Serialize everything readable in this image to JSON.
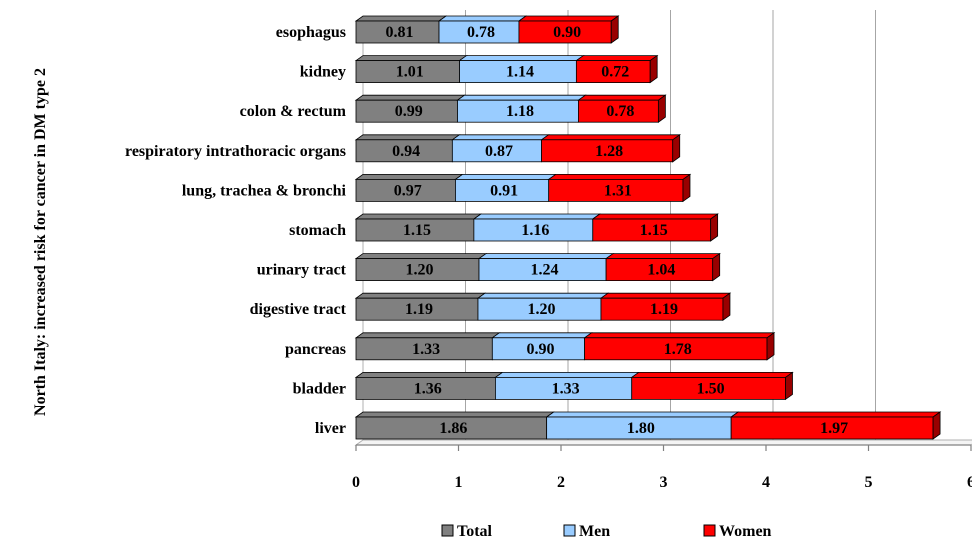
{
  "chart_data": {
    "type": "bar",
    "orientation": "horizontal",
    "stacked": true,
    "title": "",
    "ylabel": "North Italy: increased risk for cancer in DM type 2",
    "xlabel": "",
    "xlim": [
      0,
      6
    ],
    "xticks": [
      "0",
      "1",
      "2",
      "3",
      "4",
      "5",
      "6"
    ],
    "grid": "vertical",
    "legend_position": "bottom",
    "categories": [
      "esophagus",
      "kidney",
      "colon & rectum",
      "respiratory intrathoracic organs",
      "lung, trachea & bronchi",
      "stomach",
      "urinary tract",
      "digestive tract",
      "pancreas",
      "bladder",
      "liver"
    ],
    "series": [
      {
        "name": "Total",
        "color": "#808080",
        "values": [
          0.81,
          1.01,
          0.99,
          0.94,
          0.97,
          1.15,
          1.2,
          1.19,
          1.33,
          1.36,
          1.86
        ]
      },
      {
        "name": "Men",
        "color": "#99CCFF",
        "values": [
          0.78,
          1.14,
          1.18,
          0.87,
          0.91,
          1.16,
          1.24,
          1.2,
          0.9,
          1.33,
          1.8
        ]
      },
      {
        "name": "Women",
        "color": "#FF0000",
        "values": [
          0.9,
          0.72,
          0.78,
          1.28,
          1.31,
          1.15,
          1.04,
          1.19,
          1.78,
          1.5,
          1.97
        ]
      }
    ],
    "value_labels": [
      [
        "0.81",
        "0.78",
        "0.90"
      ],
      [
        "1.01",
        "1.14",
        "0.72"
      ],
      [
        "0.99",
        "1.18",
        "0.78"
      ],
      [
        "0.94",
        "0.87",
        "1.28"
      ],
      [
        "0.97",
        "0.91",
        "1.31"
      ],
      [
        "1.15",
        "1.16",
        "1.15"
      ],
      [
        "1.20",
        "1.24",
        "1.04"
      ],
      [
        "1.19",
        "1.20",
        "1.19"
      ],
      [
        "1.33",
        "0.90",
        "1.78"
      ],
      [
        "1.36",
        "1.33",
        "1.50"
      ],
      [
        "1.86",
        "1.80",
        "1.97"
      ]
    ]
  }
}
